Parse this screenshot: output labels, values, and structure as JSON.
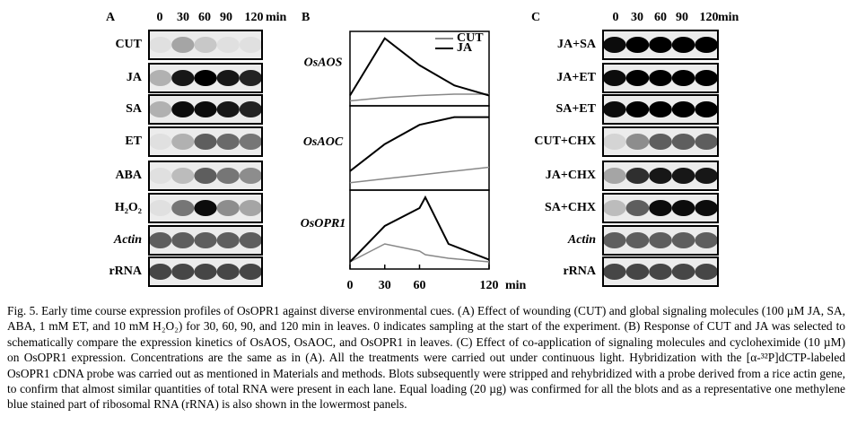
{
  "panel_a": {
    "label": "A",
    "columns": [
      "0",
      "30",
      "60",
      "90",
      "120"
    ],
    "unit": "min",
    "rows": [
      {
        "label": "CUT",
        "intensity": [
          0.05,
          0.3,
          0.15,
          0.05,
          0.05
        ]
      },
      {
        "label": "JA",
        "intensity": [
          0.25,
          0.9,
          1,
          0.9,
          0.85
        ]
      },
      {
        "label": "SA",
        "intensity": [
          0.25,
          0.95,
          0.95,
          0.9,
          0.85
        ]
      },
      {
        "label": "ET",
        "intensity": [
          0.05,
          0.25,
          0.6,
          0.55,
          0.5
        ]
      },
      {
        "label": "ABA",
        "intensity": [
          0.05,
          0.2,
          0.6,
          0.5,
          0.4
        ]
      },
      {
        "label": "H₂O₂",
        "intensity": [
          0.05,
          0.5,
          0.95,
          0.4,
          0.3
        ]
      },
      {
        "label": "Actin",
        "italic": true,
        "intensity": [
          0.6,
          0.6,
          0.6,
          0.6,
          0.6
        ]
      },
      {
        "label": "rRNA",
        "intensity": [
          0.7,
          0.7,
          0.7,
          0.7,
          0.7
        ]
      }
    ]
  },
  "panel_b": {
    "label": "B"
  },
  "chart_data": [
    {
      "type": "line",
      "title": "OsAOS",
      "x": [
        0,
        30,
        60,
        90,
        120
      ],
      "xlim": [
        0,
        120
      ],
      "ylim": [
        0,
        1
      ],
      "legend": "upper right",
      "series": [
        {
          "name": "CUT",
          "color": "#888888",
          "values": [
            0.02,
            0.07,
            0.1,
            0.12,
            0.12
          ]
        },
        {
          "name": "JA",
          "color": "#000000",
          "values": [
            0.1,
            0.95,
            0.55,
            0.25,
            0.1
          ]
        }
      ]
    },
    {
      "type": "line",
      "title": "OsAOC",
      "x": [
        0,
        30,
        60,
        90,
        120
      ],
      "xlim": [
        0,
        120
      ],
      "ylim": [
        0,
        1
      ],
      "series": [
        {
          "color": "#888888",
          "values": [
            0.05,
            0.1,
            0.15,
            0.2,
            0.25
          ]
        },
        {
          "color": "#000000",
          "values": [
            0.2,
            0.55,
            0.8,
            0.9,
            0.9
          ]
        }
      ]
    },
    {
      "type": "line",
      "title": "OsOPR1",
      "x": [
        0,
        30,
        60,
        65,
        85,
        120
      ],
      "xlim": [
        0,
        120
      ],
      "ylim": [
        0,
        1
      ],
      "xticks": [
        0,
        30,
        60,
        120
      ],
      "xlabel": "min",
      "series": [
        {
          "color": "#888888",
          "values": [
            0.05,
            0.3,
            0.2,
            0.15,
            0.1,
            0.05
          ]
        },
        {
          "color": "#000000",
          "values": [
            0.05,
            0.55,
            0.8,
            0.95,
            0.3,
            0.08
          ]
        }
      ]
    }
  ],
  "panel_c": {
    "label": "C",
    "columns": [
      "0",
      "30",
      "60",
      "90",
      "120"
    ],
    "unit": "min",
    "rows": [
      {
        "label": "JA+SA",
        "intensity": [
          0.95,
          1,
          1,
          1,
          1
        ]
      },
      {
        "label": "JA+ET",
        "intensity": [
          0.95,
          1,
          1,
          1,
          1
        ]
      },
      {
        "label": "SA+ET",
        "intensity": [
          0.95,
          1,
          1,
          1,
          1
        ]
      },
      {
        "label": "CUT+CHX",
        "intensity": [
          0.1,
          0.4,
          0.6,
          0.6,
          0.6
        ]
      },
      {
        "label": "JA+CHX",
        "intensity": [
          0.3,
          0.8,
          0.9,
          0.9,
          0.9
        ]
      },
      {
        "label": "SA+CHX",
        "intensity": [
          0.2,
          0.6,
          0.95,
          0.95,
          0.95
        ]
      },
      {
        "label": "Actin",
        "italic": true,
        "intensity": [
          0.6,
          0.6,
          0.6,
          0.6,
          0.6
        ]
      },
      {
        "label": "rRNA",
        "intensity": [
          0.7,
          0.7,
          0.7,
          0.7,
          0.7
        ]
      }
    ]
  },
  "caption": "Fig. 5. Early time course expression profiles of OsOPR1 against diverse environmental cues. (A) Effect of wounding (CUT) and global signaling molecules (100 µM JA, SA, ABA, 1 mM ET, and 10 mM H₂O₂) for 30, 60, 90, and 120 min in leaves. 0 indicates sampling at the start of the experiment. (B) Response of CUT and JA was selected to schematically compare the expression kinetics of OsAOS, OsAOC, and OsOPR1 in leaves. (C) Effect of co-application of signaling molecules and cycloheximide (10 µM) on OsOPR1 expression. Concentrations are the same as in (A). All the treatments were carried out under continuous light. Hybridization with the [α-³²P]dCTP-labeled OsOPR1 cDNA probe was carried out as mentioned in Materials and methods. Blots subsequently were stripped and rehybridized with a probe derived from a rice actin gene, to confirm that almost similar quantities of total RNA were present in each lane. Equal loading (20 µg) was confirmed for all the blots and as a representative one methylene blue stained part of ribosomal RNA (rRNA) is also shown in the lowermost panels."
}
